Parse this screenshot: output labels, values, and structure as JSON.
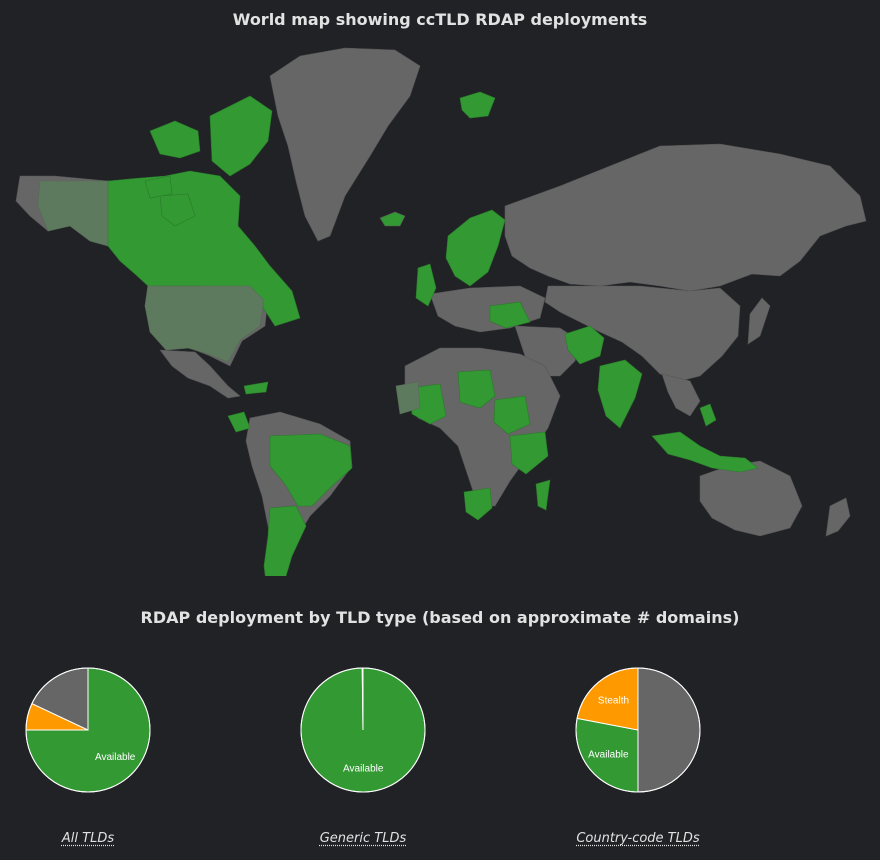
{
  "map": {
    "title": "World map showing ccTLD RDAP deployments",
    "colors": {
      "available": "#339933",
      "partial": "#5e7a5e",
      "none": "#666666",
      "stealth": "#ff9900",
      "background": "#202226"
    }
  },
  "pies_title": "RDAP deployment by TLD type (based on approximate # domains)",
  "chart_data": [
    {
      "type": "pie",
      "title": "All TLDs",
      "slices": [
        {
          "label": "Available",
          "value": 75,
          "color": "#339933",
          "show_label": true
        },
        {
          "label": "",
          "value": 7,
          "color": "#ff9900",
          "show_label": false
        },
        {
          "label": "",
          "value": 18,
          "color": "#666666",
          "show_label": false
        }
      ]
    },
    {
      "type": "pie",
      "title": "Generic TLDs",
      "slices": [
        {
          "label": "Available",
          "value": 99.8,
          "color": "#339933",
          "show_label": true
        },
        {
          "label": "",
          "value": 0.2,
          "color": "#666666",
          "show_label": false
        }
      ]
    },
    {
      "type": "pie",
      "title": "Country-code TLDs",
      "slices": [
        {
          "label": "",
          "value": 50,
          "color": "#666666",
          "show_label": false
        },
        {
          "label": "Available",
          "value": 28,
          "color": "#339933",
          "show_label": true
        },
        {
          "label": "Stealth",
          "value": 22,
          "color": "#ff9900",
          "show_label": true
        }
      ]
    }
  ]
}
